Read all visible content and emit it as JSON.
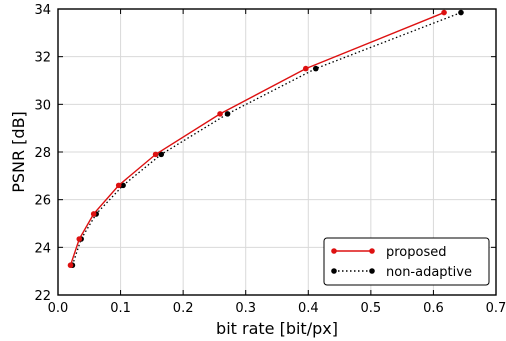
{
  "chart_data": {
    "type": "line",
    "xlabel": "bit rate [bit/px]",
    "ylabel": "PSNR [dB]",
    "xlim": [
      0.0,
      0.7
    ],
    "ylim": [
      22,
      34
    ],
    "x_ticks": [
      "0.0",
      "0.1",
      "0.2",
      "0.3",
      "0.4",
      "0.5",
      "0.6",
      "0.7"
    ],
    "y_ticks": [
      "22",
      "24",
      "26",
      "28",
      "30",
      "32",
      "34"
    ],
    "grid": true,
    "legend": {
      "position": "bottom-right"
    },
    "series": [
      {
        "name": "proposed",
        "color": "#dd1111",
        "line_style": "solid",
        "marker": "circle",
        "x": [
          0.02,
          0.034,
          0.057,
          0.097,
          0.156,
          0.259,
          0.396,
          0.617
        ],
        "y": [
          23.25,
          24.35,
          25.4,
          26.6,
          27.9,
          29.6,
          31.5,
          33.85
        ]
      },
      {
        "name": "non-adaptive",
        "color": "#000000",
        "line_style": "dotted",
        "marker": "circle",
        "x": [
          0.023,
          0.037,
          0.061,
          0.104,
          0.165,
          0.271,
          0.412,
          0.644
        ],
        "y": [
          23.25,
          24.35,
          25.4,
          26.6,
          27.9,
          29.6,
          31.5,
          33.85
        ]
      }
    ]
  }
}
